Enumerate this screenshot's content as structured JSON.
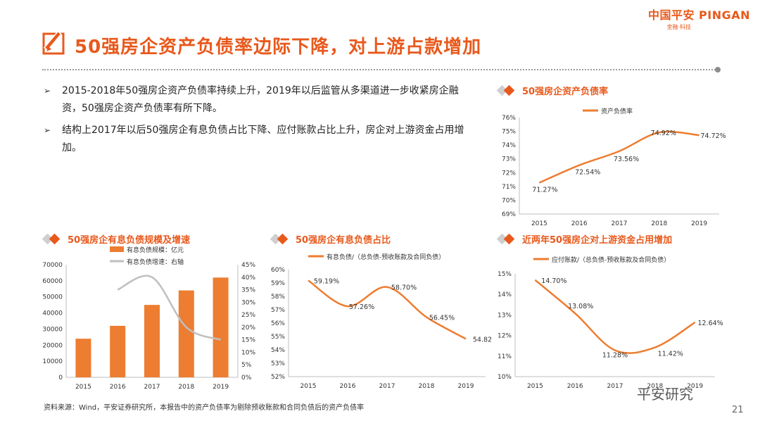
{
  "brand": {
    "name": "中国平安 PINGAN",
    "sub": "金融·科技"
  },
  "page_title": "50强房企资产负债率边际下降，对上游占款增加",
  "bullets": [
    "2015-2018年50强房企资产负债率持续上升，2019年以后监管从多渠道进一步收紧房企融资，50强房企资产负债率有所下降。",
    "结构上2017年以后50强房企有息负债占比下降、应付账款占比上升，房企对上游资金占用增加。"
  ],
  "footnote": "资料来源：Wind，平安证券研究所，本报告中的资产负债率为剔除预收账款和合同负债后的资产负债率",
  "watermark": "平安研究",
  "page_number": "21",
  "colors": {
    "accent": "#ed7d31",
    "brand": "#e8591c",
    "gray_line": "#bfbfbf"
  },
  "chart_data": [
    {
      "id": "debt_ratio",
      "type": "line",
      "title": "50强房企资产负债率",
      "legend": "资产负债率",
      "categories": [
        "2015",
        "2016",
        "2017",
        "2018",
        "2019"
      ],
      "values": [
        71.27,
        72.54,
        73.56,
        74.92,
        74.72
      ],
      "labels": [
        "71.27%",
        "72.54%",
        "73.56%",
        "74.92%",
        "74.72%"
      ],
      "ylim": [
        69,
        76
      ],
      "yticks": [
        "69%",
        "70%",
        "71%",
        "72%",
        "73%",
        "74%",
        "75%",
        "76%"
      ]
    },
    {
      "id": "interest_debt",
      "type": "bar",
      "title": "50强房企有息负债规模及增速",
      "categories": [
        "2015",
        "2016",
        "2017",
        "2018",
        "2019"
      ],
      "series": [
        {
          "name": "有息负债规模：亿元",
          "type": "bar",
          "values": [
            24000,
            32000,
            45000,
            54000,
            62000
          ]
        },
        {
          "name": "有息负债增速：右轴",
          "type": "line",
          "values": [
            null,
            35,
            40,
            20,
            15
          ]
        }
      ],
      "ylim": [
        0,
        70000
      ],
      "yticks": [
        "0",
        "10000",
        "20000",
        "30000",
        "40000",
        "50000",
        "60000",
        "70000"
      ],
      "y2lim": [
        0,
        45
      ],
      "y2ticks": [
        "0%",
        "5%",
        "10%",
        "15%",
        "20%",
        "25%",
        "30%",
        "35%",
        "40%",
        "45%"
      ]
    },
    {
      "id": "interest_share",
      "type": "line",
      "title": "50强房企有息负债占比",
      "legend": "有息负债/（总负债-预收账款及合同负债）",
      "categories": [
        "2015",
        "2016",
        "2017",
        "2018",
        "2019"
      ],
      "values": [
        59.19,
        57.26,
        58.7,
        56.45,
        54.82
      ],
      "labels": [
        "59.19%",
        "57.26%",
        "58.70%",
        "56.45%",
        "54.82%"
      ],
      "ylim": [
        52,
        60
      ],
      "yticks": [
        "52%",
        "53%",
        "54%",
        "55%",
        "56%",
        "57%",
        "58%",
        "59%",
        "60%"
      ]
    },
    {
      "id": "payables_share",
      "type": "line",
      "title": "近两年50强房企对上游资金占用增加",
      "legend": "应付账款/（总负债-预收账款及合同负债）",
      "categories": [
        "2015",
        "2016",
        "2017",
        "2018",
        "2019"
      ],
      "values": [
        14.7,
        13.08,
        11.28,
        11.42,
        12.64
      ],
      "labels": [
        "14.70%",
        "13.08%",
        "11.28%",
        "11.42%",
        "12.64%"
      ],
      "ylim": [
        10,
        15
      ],
      "yticks": [
        "10%",
        "11%",
        "12%",
        "13%",
        "14%",
        "15%"
      ]
    }
  ]
}
